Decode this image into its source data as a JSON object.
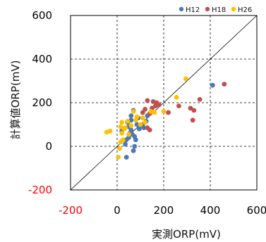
{
  "chart_data": {
    "type": "scatter",
    "xlabel": "実測ORP(mV)",
    "ylabel": "計算値ORP(mV)",
    "xlim": [
      -200,
      600
    ],
    "ylim": [
      -200,
      600
    ],
    "x_ticks": [
      "-200",
      "0",
      "200",
      "400",
      "600"
    ],
    "y_ticks": [
      "-200",
      "0",
      "200",
      "400",
      "600"
    ],
    "negative_tick_color": "#ff0000",
    "grid": "dashed",
    "reference_line": "y = x",
    "legend_position": "top-right",
    "series": [
      {
        "name": "H12",
        "color": "#4a78b8",
        "points": [
          [
            410,
            280
          ],
          [
            130,
            140
          ],
          [
            125,
            115
          ],
          [
            115,
            85
          ],
          [
            95,
            80
          ],
          [
            85,
            100
          ],
          [
            70,
            165
          ],
          [
            60,
            140
          ],
          [
            60,
            75
          ],
          [
            55,
            60
          ],
          [
            50,
            40
          ],
          [
            40,
            30
          ],
          [
            35,
            10
          ],
          [
            80,
            30
          ],
          [
            75,
            45
          ],
          [
            65,
            55
          ],
          [
            30,
            80
          ],
          [
            90,
            130
          ],
          [
            60,
            120
          ],
          [
            45,
            110
          ],
          [
            75,
            0
          ],
          [
            70,
            -20
          ],
          [
            40,
            -50
          ],
          [
            20,
            70
          ],
          [
            100,
            90
          ],
          [
            110,
            100
          ],
          [
            50,
            90
          ]
        ]
      },
      {
        "name": "H18",
        "color": "#c0504d",
        "points": [
          [
            460,
            285
          ],
          [
            355,
            215
          ],
          [
            315,
            175
          ],
          [
            330,
            165
          ],
          [
            325,
            120
          ],
          [
            265,
            185
          ],
          [
            220,
            155
          ],
          [
            180,
            190
          ],
          [
            155,
            205
          ],
          [
            150,
            175
          ],
          [
            140,
            150
          ],
          [
            130,
            210
          ],
          [
            120,
            170
          ],
          [
            110,
            155
          ],
          [
            140,
            75
          ],
          [
            130,
            85
          ],
          [
            165,
            185
          ],
          [
            170,
            200
          ]
        ]
      },
      {
        "name": "H26",
        "color": "#ffc000",
        "points": [
          [
            295,
            310
          ],
          [
            255,
            225
          ],
          [
            200,
            160
          ],
          [
            160,
            155
          ],
          [
            145,
            160
          ],
          [
            110,
            130
          ],
          [
            80,
            120
          ],
          [
            70,
            160
          ],
          [
            85,
            135
          ],
          [
            60,
            95
          ],
          [
            45,
            115
          ],
          [
            30,
            80
          ],
          [
            20,
            60
          ],
          [
            25,
            30
          ],
          [
            15,
            20
          ],
          [
            10,
            -10
          ],
          [
            5,
            -50
          ],
          [
            -30,
            70
          ],
          [
            -45,
            65
          ],
          [
            15,
            90
          ],
          [
            50,
            55
          ],
          [
            100,
            100
          ],
          [
            120,
            110
          ],
          [
            20,
            110
          ],
          [
            35,
            85
          ]
        ]
      }
    ]
  }
}
